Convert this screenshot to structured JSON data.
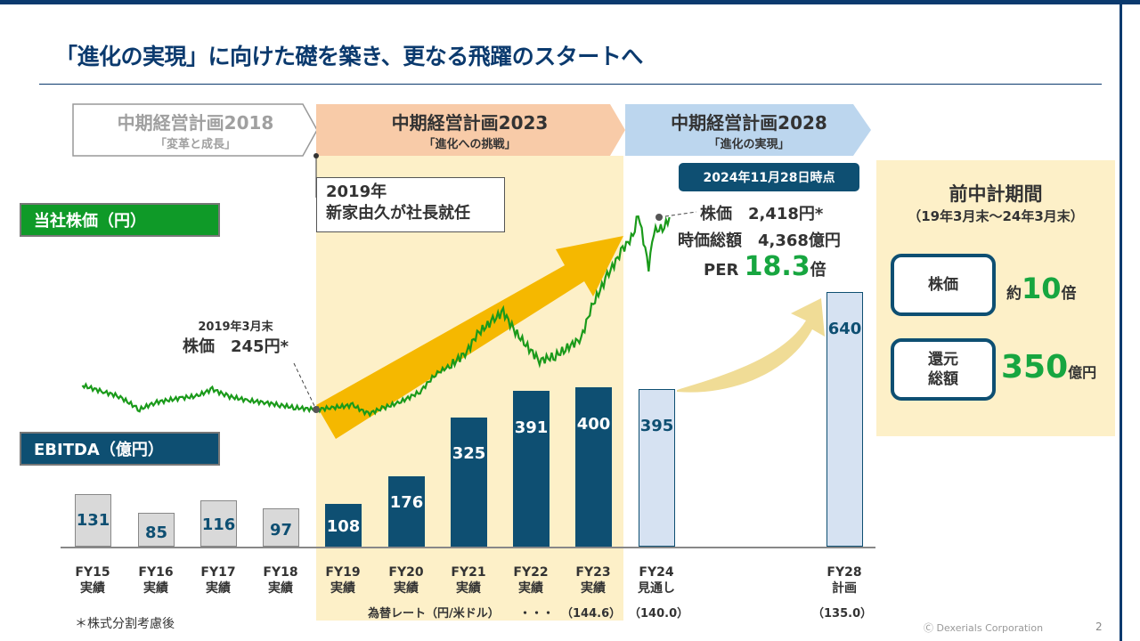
{
  "title": "「進化の実現」に向けた礎を築き、更なる飛躍のスタートへ",
  "phases": [
    {
      "name": "中期経営計画2018",
      "sub": "「変革と成長」"
    },
    {
      "name": "中期経営計画2023",
      "sub": "「進化への挑戦」"
    },
    {
      "name": "中期経営計画2028",
      "sub": "「進化の実現」"
    }
  ],
  "stock_label": "当社株価（円）",
  "ebitda_label": "EBITDA（億円）",
  "note_2019": {
    "line1": "2019年",
    "line2": "新家由久が社長就任"
  },
  "annotation_2019": {
    "date": "2019年3月末",
    "price": "株価　245円*"
  },
  "as_of": {
    "label": "2024年11月28日時点",
    "price": "株価　2,418円*",
    "market_cap": "時価総額　4,368億円",
    "per_label": "PER",
    "per_value": "18.3",
    "per_unit": "倍"
  },
  "panel": {
    "title": "前中計期間",
    "period": "（19年3月末～24年3月末）",
    "items": [
      {
        "label": "株価",
        "prefix": "約",
        "value": "10",
        "unit": "倍"
      },
      {
        "label": "還元\n総額",
        "prefix": "",
        "value": "350",
        "unit": "億円"
      }
    ]
  },
  "colors": {
    "navy": "#0e4f72",
    "green": "#0f9a28",
    "highlight": "#17a640",
    "band": "#fdf0c8",
    "arrow": "#f5b800"
  },
  "chart_data": [
    {
      "type": "bar",
      "title": "EBITDA（億円）",
      "categories": [
        "FY15\n実績",
        "FY16\n実績",
        "FY17\n実績",
        "FY18\n実績",
        "FY19\n実績",
        "FY20\n実績",
        "FY21\n実績",
        "FY22\n実績",
        "FY23\n実績",
        "FY24\n見通し",
        "FY28\n計画"
      ],
      "values": [
        131,
        85,
        116,
        97,
        108,
        176,
        325,
        391,
        400,
        395,
        640
      ],
      "labels": [
        "131",
        "85",
        "116",
        "97",
        "108",
        "176",
        "325",
        "391",
        "400",
        "395",
        "640"
      ],
      "bar_styles": [
        "past",
        "past",
        "past",
        "past",
        "actual",
        "actual",
        "actual",
        "actual",
        "actual",
        "forecast",
        "forecast"
      ]
    },
    {
      "type": "line",
      "title": "当社株価（円）",
      "series": [
        {
          "x": [
            "2015-06",
            "2015-10",
            "2016-01",
            "2016-05",
            "2016-08",
            "2017-01",
            "2017-04",
            "2017-07",
            "2017-10",
            "2018-02",
            "2018-05",
            "2018-08",
            "2018-11",
            "2019-03",
            "2019-06",
            "2019-10",
            "2020-01",
            "2020-04",
            "2020-07",
            "2020-11",
            "2021-02",
            "2021-05",
            "2021-08",
            "2021-10",
            "2022-01",
            "2022-03",
            "2022-05",
            "2022-07",
            "2022-10",
            "2023-01",
            "2023-03",
            "2023-06",
            "2023-08",
            "2023-11",
            "2024-02",
            "2024-04",
            "2024-05",
            "2024-07",
            "2024-08",
            "2024-10",
            "2024-11"
          ],
          "y": [
            517,
            446,
            396,
            245,
            325,
            376,
            396,
            476,
            396,
            346,
            325,
            295,
            265,
            245,
            265,
            295,
            195,
            265,
            325,
            446,
            647,
            748,
            899,
            1100,
            1251,
            1352,
            1150,
            999,
            798,
            849,
            929,
            1050,
            1402,
            1754,
            2056,
            2207,
            2458,
            1855,
            2257,
            2307,
            2418
          ]
        }
      ]
    }
  ],
  "fx": {
    "label": "為替レート（円/米ドル）",
    "ellipsis": "・・・",
    "fy23": "（144.6）",
    "fy24": "（140.0）",
    "fy28": "（135.0）"
  },
  "footnote": "＊株式分割考慮後",
  "copyright": "Ⓒ Dexerials Corporation",
  "page": "2"
}
